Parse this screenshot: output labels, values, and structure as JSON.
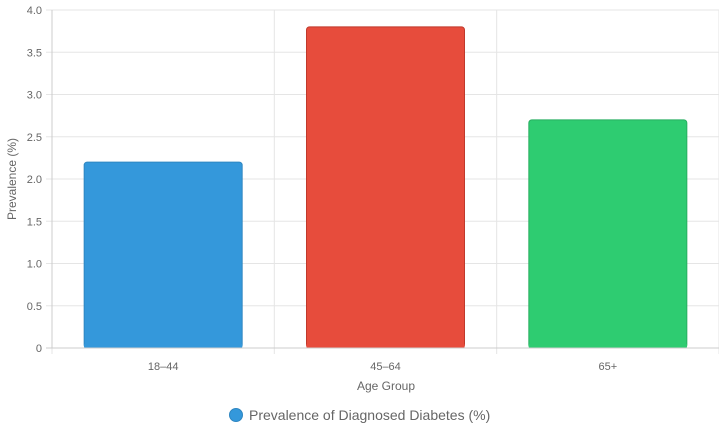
{
  "chart_data": {
    "type": "bar",
    "categories": [
      "18–44",
      "45–64",
      "65+"
    ],
    "series": [
      {
        "name": "Prevalence of Diagnosed Diabetes (%)",
        "values": [
          2.2,
          3.8,
          2.7
        ],
        "colors": [
          "#3498db",
          "#e74c3c",
          "#2ecc71"
        ],
        "border_colors": [
          "#2e86c1",
          "#c0392b",
          "#27ae60"
        ]
      }
    ],
    "xlabel": "Age Group",
    "ylabel": "Prevalence (%)",
    "ylim": [
      0,
      4.0
    ],
    "yticks": [
      "0",
      "0.5",
      "1.0",
      "1.5",
      "2.0",
      "2.5",
      "3.0",
      "3.5",
      "4.0"
    ],
    "grid": true,
    "legend_position": "bottom",
    "legend_marker_color": "#3498db"
  }
}
